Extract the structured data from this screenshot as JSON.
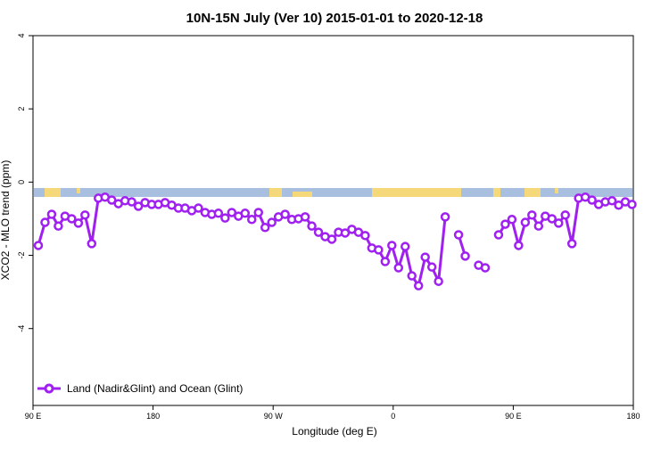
{
  "chart_data": {
    "type": "line",
    "title": "10N-15N July (Ver 10)   2015-01-01 to 2020-12-18",
    "x_label": "Longitude (deg E)",
    "y_label": "XCO2 - MLO trend (ppm)",
    "xlim": [
      90,
      540
    ],
    "ylim": [
      -6.1,
      4
    ],
    "xticks": [
      {
        "value": 90,
        "label": "90 E"
      },
      {
        "value": 180,
        "label": "180"
      },
      {
        "value": 270,
        "label": "90 W"
      },
      {
        "value": 360,
        "label": "0"
      },
      {
        "value": 450,
        "label": "90 E"
      },
      {
        "value": 540,
        "label": "180"
      }
    ],
    "yticks": [
      4,
      2,
      0,
      -2,
      -4
    ],
    "legend": "bottom-left",
    "x": [
      94,
      99,
      104,
      109,
      114,
      119,
      124,
      129,
      134,
      139,
      144,
      149,
      154,
      159,
      164,
      169,
      174,
      179,
      184,
      189,
      194,
      199,
      204,
      209,
      214,
      219,
      224,
      229,
      234,
      239,
      244,
      249,
      254,
      259,
      264,
      269,
      274,
      279,
      284,
      289,
      294,
      299,
      304,
      309,
      314,
      319,
      324,
      329,
      334,
      339,
      344,
      349,
      354,
      359,
      364,
      369,
      374,
      379,
      384,
      389,
      394,
      399,
      404,
      409,
      414,
      419,
      424,
      429,
      434,
      439,
      444,
      449,
      454,
      459,
      464,
      469,
      474,
      479,
      484,
      489,
      494,
      499,
      504,
      509,
      514,
      519,
      524,
      529,
      534,
      539
    ],
    "series": [
      {
        "name": "Land (Nadir&Glint) and Ocean (Glint)",
        "color": "#a020f0",
        "values": [
          -1.73,
          -1.1,
          -0.88,
          -1.2,
          -0.93,
          -1.0,
          -1.12,
          -0.9,
          -1.68,
          -0.44,
          -0.41,
          -0.49,
          -0.59,
          -0.51,
          -0.54,
          -0.66,
          -0.56,
          -0.61,
          -0.61,
          -0.56,
          -0.63,
          -0.71,
          -0.71,
          -0.78,
          -0.71,
          -0.83,
          -0.88,
          -0.85,
          -0.98,
          -0.83,
          -0.93,
          -0.85,
          -1.02,
          -0.83,
          -1.24,
          -1.1,
          -0.95,
          -0.88,
          -1.02,
          -1.0,
          -0.95,
          -1.2,
          -1.37,
          -1.49,
          -1.56,
          -1.37,
          -1.39,
          -1.29,
          -1.37,
          -1.46,
          -1.8,
          -1.85,
          -2.17,
          -1.73,
          -2.34,
          -1.76,
          -2.56,
          -2.83,
          -2.05,
          -2.32,
          -2.71,
          -0.95,
          null,
          -1.44,
          -2.02,
          null,
          -2.27,
          -2.34,
          null,
          -1.44,
          -1.15,
          -1.02,
          -1.73,
          -1.1,
          -0.9,
          -1.2,
          -0.93,
          -1.0,
          -1.12,
          -0.9,
          -1.68,
          -0.44,
          -0.41,
          -0.49,
          -0.61,
          -0.54,
          -0.51,
          -0.63,
          -0.54,
          -0.61
        ]
      }
    ]
  }
}
